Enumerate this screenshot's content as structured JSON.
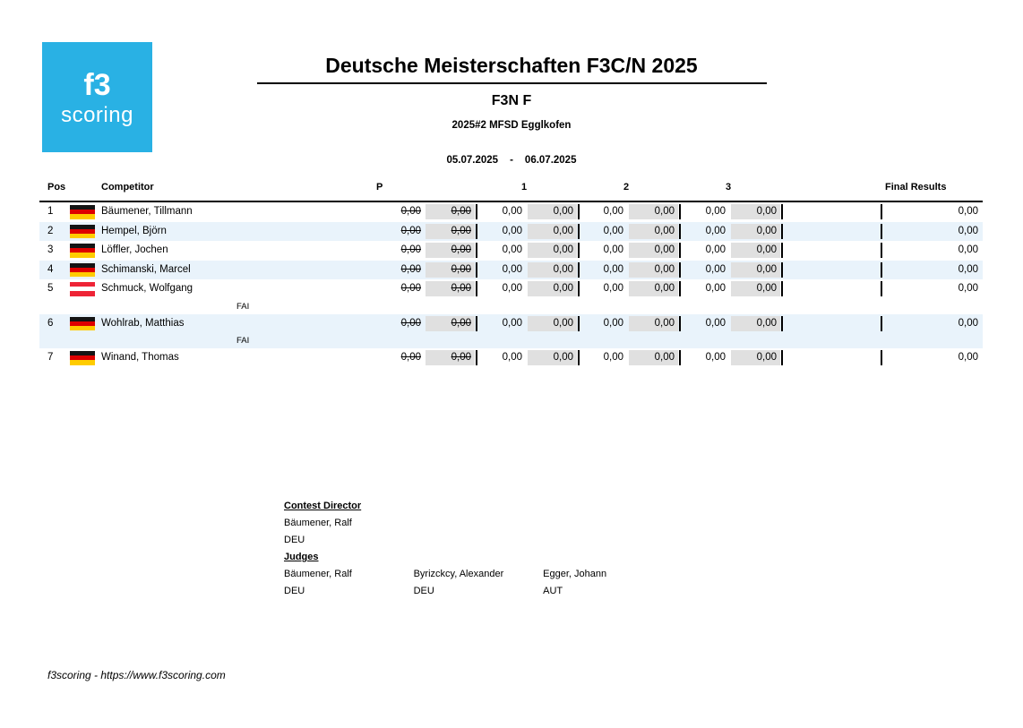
{
  "page": {
    "logo": {
      "line1": "f3",
      "line2": "scoring"
    },
    "title": "Deutsche Meisterschaften F3C/N 2025",
    "class_name": "F3N F",
    "event_name": "2025#2 MFSD Egglkofen",
    "date_from": "05.07.2025",
    "date_separator": "-",
    "date_to": "06.07.2025"
  },
  "table": {
    "headers": {
      "pos": "Pos",
      "competitor": "Competitor",
      "p": "P",
      "round1": "1",
      "round2": "2",
      "round3": "3",
      "final": "Final Results"
    },
    "p_column_struck": true,
    "rows": [
      {
        "pos": "1",
        "flag": "DEU",
        "name": "Bäumener, Tillmann",
        "p": [
          "0,00",
          "0,00"
        ],
        "round1": [
          "0,00",
          "0,00"
        ],
        "round2": [
          "0,00",
          "0,00"
        ],
        "round3": [
          "0,00",
          "0,00"
        ],
        "final": "0,00",
        "sub_label": null,
        "band": "white"
      },
      {
        "pos": "2",
        "flag": "DEU",
        "name": "Hempel, Björn",
        "p": [
          "0,00",
          "0,00"
        ],
        "round1": [
          "0,00",
          "0,00"
        ],
        "round2": [
          "0,00",
          "0,00"
        ],
        "round3": [
          "0,00",
          "0,00"
        ],
        "final": "0,00",
        "sub_label": null,
        "band": "blue"
      },
      {
        "pos": "3",
        "flag": "DEU",
        "name": "Löffler, Jochen",
        "p": [
          "0,00",
          "0,00"
        ],
        "round1": [
          "0,00",
          "0,00"
        ],
        "round2": [
          "0,00",
          "0,00"
        ],
        "round3": [
          "0,00",
          "0,00"
        ],
        "final": "0,00",
        "sub_label": null,
        "band": "white"
      },
      {
        "pos": "4",
        "flag": "DEU",
        "name": "Schimanski, Marcel",
        "p": [
          "0,00",
          "0,00"
        ],
        "round1": [
          "0,00",
          "0,00"
        ],
        "round2": [
          "0,00",
          "0,00"
        ],
        "round3": [
          "0,00",
          "0,00"
        ],
        "final": "0,00",
        "sub_label": null,
        "band": "blue"
      },
      {
        "pos": "5",
        "flag": "AUT",
        "name": "Schmuck, Wolfgang",
        "p": [
          "0,00",
          "0,00"
        ],
        "round1": [
          "0,00",
          "0,00"
        ],
        "round2": [
          "0,00",
          "0,00"
        ],
        "round3": [
          "0,00",
          "0,00"
        ],
        "final": "0,00",
        "sub_label": "FAI",
        "band": "white"
      },
      {
        "pos": "6",
        "flag": "DEU",
        "name": "Wohlrab, Matthias",
        "p": [
          "0,00",
          "0,00"
        ],
        "round1": [
          "0,00",
          "0,00"
        ],
        "round2": [
          "0,00",
          "0,00"
        ],
        "round3": [
          "0,00",
          "0,00"
        ],
        "final": "0,00",
        "sub_label": "FAI",
        "band": "blue"
      },
      {
        "pos": "7",
        "flag": "DEU",
        "name": "Winand, Thomas",
        "p": [
          "0,00",
          "0,00"
        ],
        "round1": [
          "0,00",
          "0,00"
        ],
        "round2": [
          "0,00",
          "0,00"
        ],
        "round3": [
          "0,00",
          "0,00"
        ],
        "final": "0,00",
        "sub_label": null,
        "band": "white"
      }
    ]
  },
  "officials": {
    "contest_director": {
      "heading": "Contest Director",
      "name": "Bäumener, Ralf",
      "country": "DEU"
    },
    "judges": {
      "heading": "Judges",
      "entries": [
        {
          "name": "Bäumener, Ralf",
          "country": "DEU"
        },
        {
          "name": "Byrizckcy, Alexander",
          "country": "DEU"
        },
        {
          "name": "Egger, Johann",
          "country": "AUT"
        }
      ]
    }
  },
  "footer": {
    "text": "f3scoring - https://www.f3scoring.com"
  },
  "colors": {
    "logo_blue": "#29b1e4",
    "row_alt_blue": "#e9f3fb",
    "score_cell_gray": "#e0e0e0",
    "flag_deu": [
      "#141414",
      "#dd0000",
      "#ffcc00"
    ],
    "flag_aut": [
      "#ee2436",
      "#ffffff",
      "#ee2436"
    ]
  }
}
